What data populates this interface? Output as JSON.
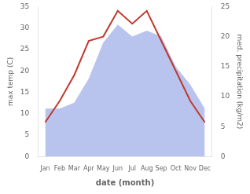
{
  "chart_data": {
    "type": "line",
    "categories": [
      "Jan",
      "Feb",
      "Mar",
      "Apr",
      "May",
      "Jun",
      "Jul",
      "Aug",
      "Sep",
      "Oct",
      "Nov",
      "Dec"
    ],
    "series": [
      {
        "type": "line",
        "color": "#c0392b",
        "values": [
          8,
          13,
          19,
          27,
          28,
          34,
          31,
          34,
          27,
          20,
          13,
          8
        ]
      },
      {
        "type": "area",
        "color": "#b8c4ee",
        "axis": "y2",
        "values": [
          8,
          8,
          9,
          13,
          19,
          22,
          20,
          21,
          20,
          15,
          12,
          8
        ]
      }
    ],
    "xlabel": "date (month)",
    "ylabel": "max temp (C)",
    "y2label": "med. precipitation (kg/m2)",
    "ylim": [
      0,
      35
    ],
    "yticks": [
      0,
      5,
      10,
      15,
      20,
      25,
      30,
      35
    ],
    "y2lim": [
      0,
      25
    ],
    "y2ticks": [
      0,
      5,
      10,
      15,
      20,
      25
    ],
    "grid": false
  }
}
